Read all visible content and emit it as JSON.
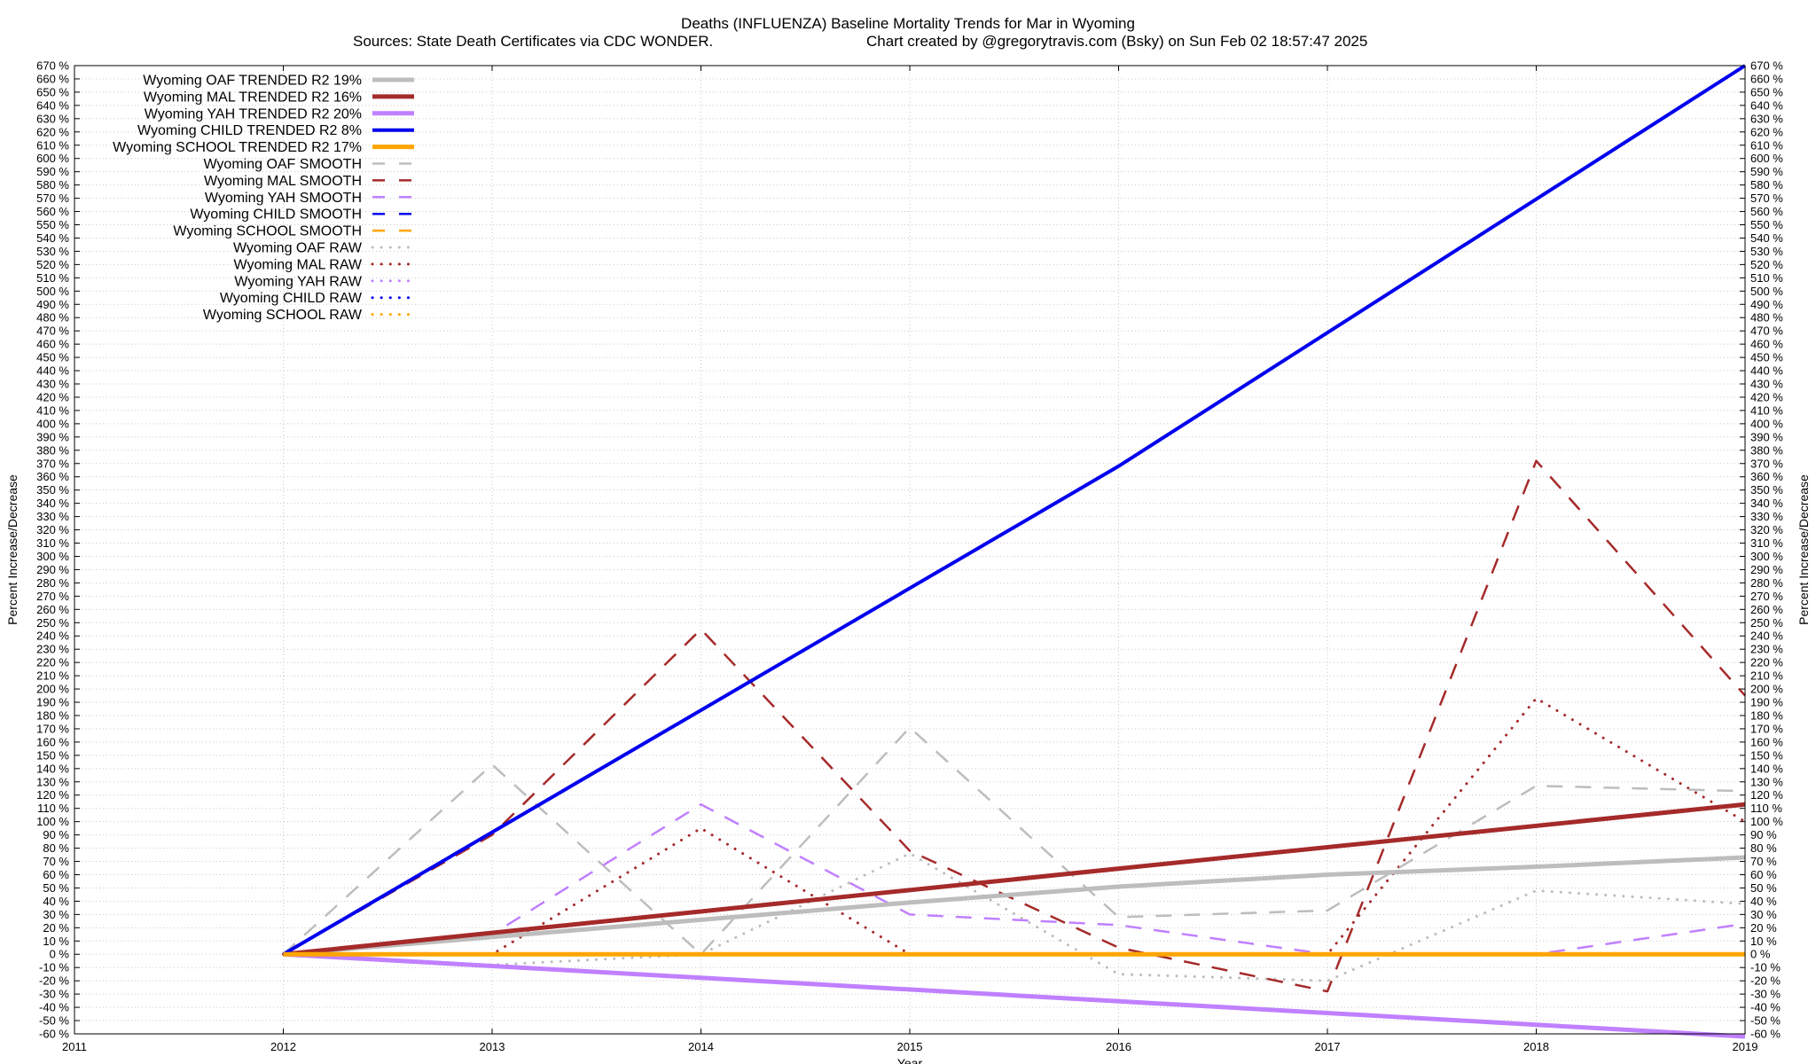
{
  "chart_data": {
    "type": "line",
    "title": "Deaths (INFLUENZA)  Baseline Mortality Trends for Mar in Wyoming",
    "subtitle_left": "Sources: State Death Certificates via CDC WONDER.",
    "subtitle_right": "Chart created by @gregorytravis.com (Bsky) on Sun Feb 02 18:57:47 2025",
    "xlabel": "Year",
    "ylabel": "Percent Increase/Decrease",
    "y2label": "Percent Increase/Decrease",
    "xlim": [
      2011,
      2019
    ],
    "ylim": [
      -60,
      670
    ],
    "ytick_step": 10,
    "ytick_suffix": " %",
    "x_ticks": [
      "2011",
      "2012",
      "2013",
      "2014",
      "2015",
      "2016",
      "2017",
      "2018",
      "2019"
    ],
    "grid": true,
    "legend_position": "top-left",
    "series": [
      {
        "name": "Wyoming OAF TRENDED R2  19%",
        "style": "solid",
        "color": "#bdbdbd",
        "x": [
          2012,
          2013,
          2014,
          2015,
          2016,
          2017,
          2018,
          2019
        ],
        "y": [
          0,
          13,
          26,
          39,
          51,
          60,
          66,
          73
        ]
      },
      {
        "name": "Wyoming MAL TRENDED R2  16%",
        "style": "solid",
        "color": "#a52a2a",
        "x": [
          2012,
          2019
        ],
        "y": [
          0,
          113
        ]
      },
      {
        "name": "Wyoming YAH TRENDED R2  20%",
        "style": "solid",
        "color": "#c080ff",
        "x": [
          2012,
          2019
        ],
        "y": [
          0,
          -62
        ]
      },
      {
        "name": "Wyoming CHILD TRENDED R2  8%",
        "style": "solid",
        "color": "#0000ee",
        "x": [
          2012,
          2016,
          2019
        ],
        "y": [
          0,
          368,
          670
        ]
      },
      {
        "name": "Wyoming SCHOOL TRENDED R2  17%",
        "style": "solid",
        "color": "#ffa500",
        "x": [
          2012,
          2019
        ],
        "y": [
          0,
          0
        ]
      },
      {
        "name": "Wyoming OAF SMOOTH",
        "style": "dashed",
        "color": "#bdbdbd",
        "x": [
          2012,
          2013,
          2014,
          2015,
          2016,
          2017,
          2018,
          2019
        ],
        "y": [
          0,
          143,
          0,
          171,
          28,
          33,
          127,
          123
        ]
      },
      {
        "name": "Wyoming MAL SMOOTH",
        "style": "dashed",
        "color": "#a52a2a",
        "x": [
          2012,
          2013,
          2014,
          2015,
          2016,
          2017,
          2018,
          2019
        ],
        "y": [
          0,
          90,
          245,
          78,
          5,
          -28,
          372,
          195
        ]
      },
      {
        "name": "Wyoming YAH SMOOTH",
        "style": "dashed",
        "color": "#c080ff",
        "x": [
          2012,
          2013,
          2014,
          2015,
          2016,
          2017,
          2018,
          2019
        ],
        "y": [
          0,
          15,
          113,
          30,
          22,
          0,
          0,
          23
        ]
      },
      {
        "name": "Wyoming CHILD SMOOTH",
        "style": "dashed",
        "color": "#0000ee",
        "x": [],
        "y": []
      },
      {
        "name": "Wyoming SCHOOL SMOOTH",
        "style": "dashed",
        "color": "#ffa500",
        "x": [],
        "y": []
      },
      {
        "name": "Wyoming OAF RAW",
        "style": "dotted",
        "color": "#bdbdbd",
        "x": [
          2012,
          2013,
          2014,
          2015,
          2016,
          2017,
          2018,
          2019
        ],
        "y": [
          0,
          -8,
          0,
          76,
          -15,
          -20,
          48,
          38
        ]
      },
      {
        "name": "Wyoming MAL RAW",
        "style": "dotted",
        "color": "#a52a2a",
        "x": [
          2012,
          2013,
          2014,
          2015,
          2016,
          2017,
          2018,
          2019
        ],
        "y": [
          0,
          0,
          95,
          0,
          0,
          0,
          193,
          100
        ]
      },
      {
        "name": "Wyoming YAH RAW",
        "style": "dotted",
        "color": "#c080ff",
        "x": [],
        "y": []
      },
      {
        "name": "Wyoming CHILD RAW",
        "style": "dotted",
        "color": "#0000ee",
        "x": [],
        "y": []
      },
      {
        "name": "Wyoming SCHOOL RAW",
        "style": "dotted",
        "color": "#ffa500",
        "x": [],
        "y": []
      }
    ]
  }
}
